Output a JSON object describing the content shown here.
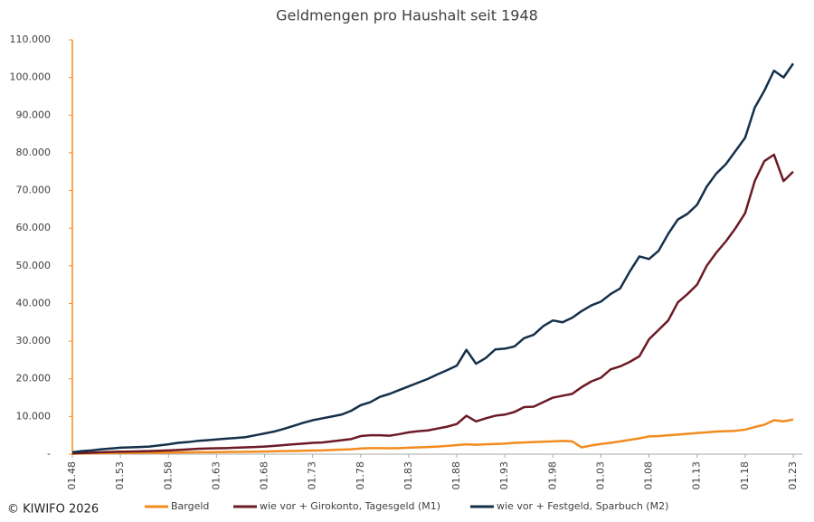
{
  "chart_data": {
    "type": "line",
    "title": "Geldmengen pro Haushalt seit 1948",
    "source": "© KIWIFO 2026",
    "categories": [
      "01.48",
      null,
      null,
      null,
      null,
      "01.53",
      null,
      null,
      null,
      null,
      "01.58",
      null,
      null,
      null,
      null,
      "01.63",
      null,
      null,
      null,
      null,
      "01.68",
      null,
      null,
      null,
      null,
      "01.73",
      null,
      null,
      null,
      null,
      "01.78",
      null,
      null,
      null,
      null,
      "01.83",
      null,
      null,
      null,
      null,
      "01.88",
      null,
      null,
      null,
      null,
      "01.93",
      null,
      null,
      null,
      null,
      "01.98",
      null,
      null,
      null,
      null,
      "01.03",
      null,
      null,
      null,
      null,
      "01.08",
      null,
      null,
      null,
      null,
      "01.13",
      null,
      null,
      null,
      null,
      "01.18",
      null,
      null,
      null,
      null,
      "01.23"
    ],
    "ylim": [
      0,
      110000
    ],
    "yticks": [
      {
        "value": 0,
        "label": "-"
      },
      {
        "value": 10000,
        "label": "10.000"
      },
      {
        "value": 20000,
        "label": "20.000"
      },
      {
        "value": 30000,
        "label": "30.000"
      },
      {
        "value": 40000,
        "label": "40.000"
      },
      {
        "value": 50000,
        "label": "50.000"
      },
      {
        "value": 60000,
        "label": "60.000"
      },
      {
        "value": 70000,
        "label": "70.000"
      },
      {
        "value": 80000,
        "label": "80.000"
      },
      {
        "value": 90000,
        "label": "90.000"
      },
      {
        "value": 100000,
        "label": "100.000"
      },
      {
        "value": 110000,
        "label": "110.000"
      }
    ],
    "grid": false,
    "legend": "bottom",
    "series": [
      {
        "name": "Bargeld",
        "color": "#f28c1e",
        "values": [
          100,
          150,
          200,
          250,
          300,
          320,
          340,
          360,
          380,
          400,
          420,
          450,
          480,
          500,
          520,
          550,
          580,
          600,
          620,
          650,
          700,
          750,
          800,
          850,
          900,
          950,
          1000,
          1100,
          1200,
          1300,
          1500,
          1600,
          1600,
          1550,
          1600,
          1700,
          1800,
          1900,
          2000,
          2200,
          2400,
          2600,
          2500,
          2600,
          2700,
          2800,
          3000,
          3100,
          3200,
          3300,
          3400,
          3500,
          3400,
          1800,
          2300,
          2700,
          3000,
          3400,
          3800,
          4200,
          4700,
          4800,
          5000,
          5200,
          5400,
          5600,
          5800,
          6000,
          6100,
          6200,
          6500,
          7200,
          7800,
          9000,
          8700,
          9200
        ]
      },
      {
        "name": "wie vor + Girokonto, Tagesgeld (M1)",
        "color": "#6b1a26",
        "values": [
          200,
          300,
          400,
          500,
          600,
          650,
          700,
          750,
          800,
          900,
          1000,
          1100,
          1250,
          1400,
          1500,
          1550,
          1600,
          1700,
          1800,
          1900,
          2000,
          2200,
          2400,
          2600,
          2800,
          3000,
          3100,
          3400,
          3700,
          4000,
          4800,
          5000,
          5000,
          4900,
          5300,
          5800,
          6100,
          6300,
          6800,
          7300,
          8000,
          10200,
          8700,
          9500,
          10200,
          10500,
          11200,
          12500,
          12600,
          13800,
          15000,
          15500,
          16000,
          17800,
          19300,
          20300,
          22500,
          23300,
          24500,
          26000,
          30500,
          33000,
          35500,
          40300,
          42500,
          45000,
          50000,
          53500,
          56500,
          60000,
          64000,
          72500,
          77800,
          79500,
          72500,
          75000
        ]
      },
      {
        "name": "wie vor + Festgeld, Sparbuch (M2)",
        "color": "#15304a",
        "values": [
          500,
          800,
          1000,
          1300,
          1500,
          1700,
          1800,
          1900,
          2000,
          2300,
          2600,
          3000,
          3200,
          3500,
          3700,
          3900,
          4100,
          4300,
          4500,
          5000,
          5500,
          6000,
          6700,
          7500,
          8300,
          9000,
          9500,
          10000,
          10500,
          11500,
          13000,
          13800,
          15200,
          16000,
          17000,
          18000,
          19000,
          20000,
          21200,
          22300,
          23500,
          27700,
          24000,
          25500,
          27800,
          28000,
          28600,
          30800,
          31700,
          34000,
          35500,
          35000,
          36200,
          38000,
          39500,
          40500,
          42500,
          44000,
          48500,
          52500,
          51800,
          54000,
          58500,
          62300,
          63800,
          66200,
          71000,
          74500,
          77000,
          80500,
          84000,
          92000,
          96500,
          101800,
          100000,
          103700
        ]
      }
    ]
  }
}
